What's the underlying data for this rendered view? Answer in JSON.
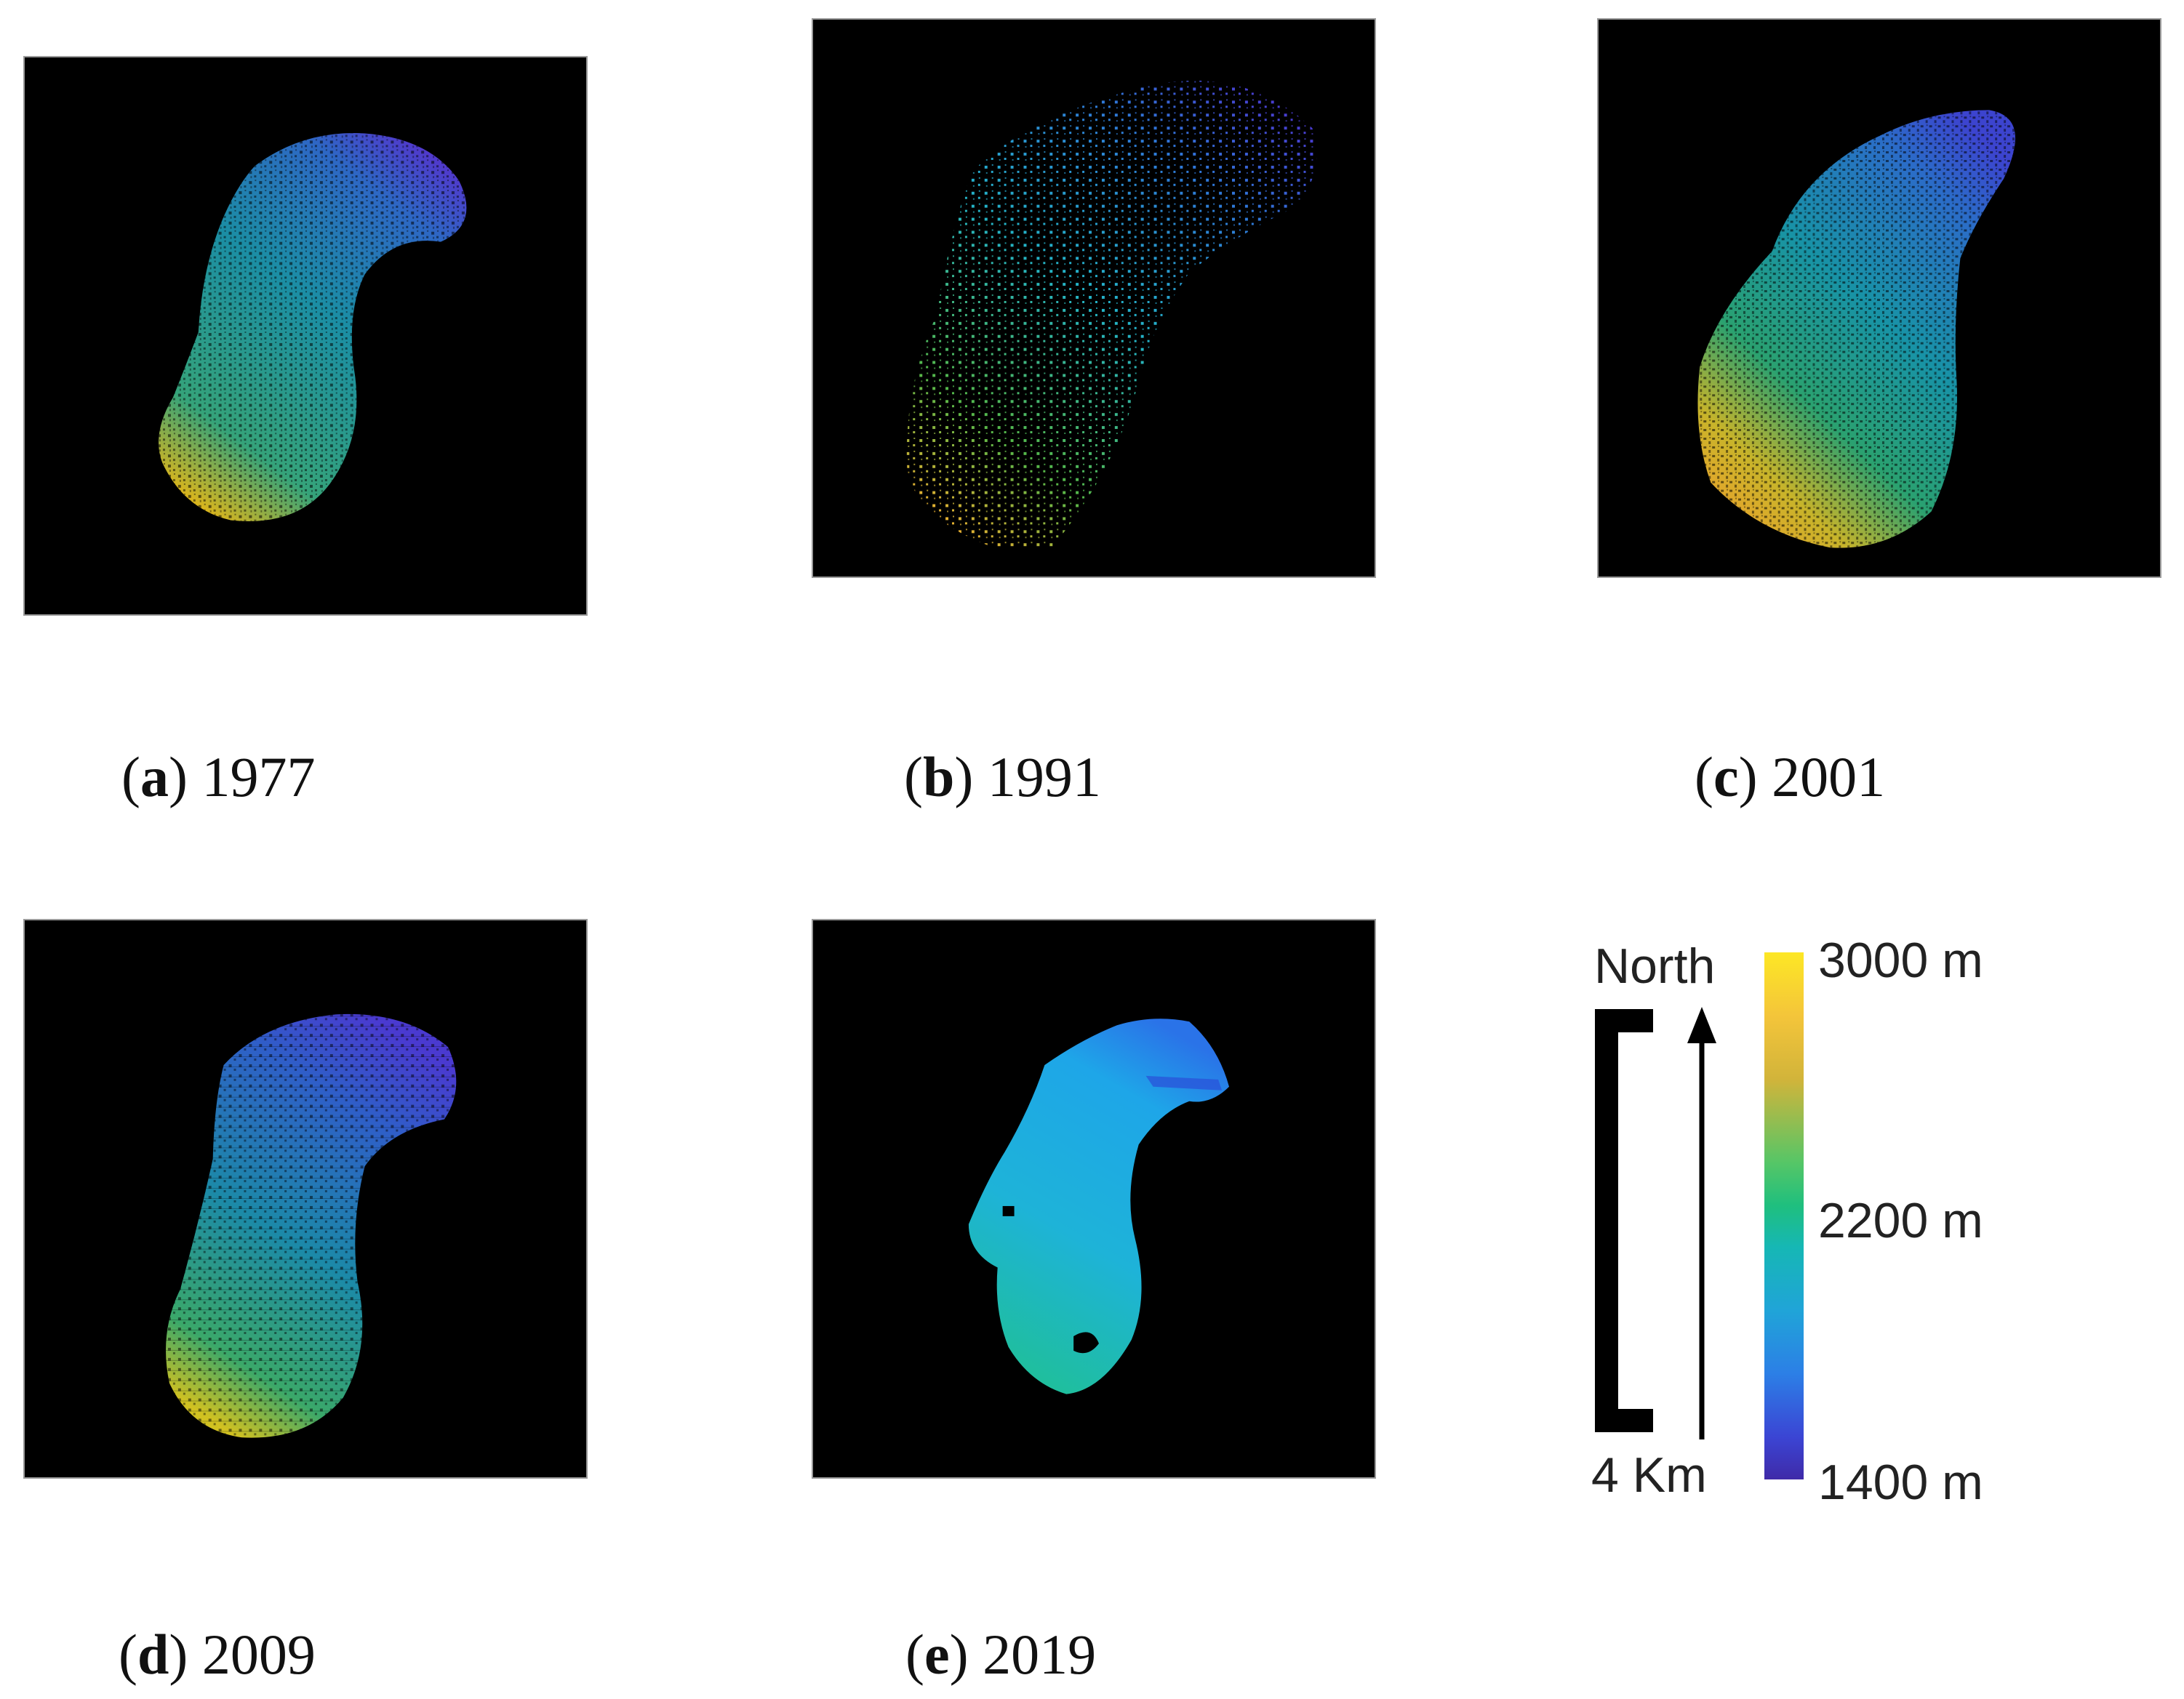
{
  "panels": [
    {
      "id": "a",
      "letter": "a",
      "year": "1977",
      "colors": {
        "north": "#4a3fd0",
        "mid": "#1d9fb0",
        "south": "#d4b11c"
      }
    },
    {
      "id": "b",
      "letter": "b",
      "year": "1991",
      "colors": {
        "north": "#3b3dcc",
        "mid": "#22b6c9",
        "south": "#f0b030"
      }
    },
    {
      "id": "c",
      "letter": "c",
      "year": "2001",
      "colors": {
        "north": "#3050d8",
        "mid": "#1aa39e",
        "south": "#e3a72b"
      }
    },
    {
      "id": "d",
      "letter": "d",
      "year": "2009",
      "colors": {
        "north": "#3c4dd4",
        "mid": "#1f8fb0",
        "south": "#c9c024"
      }
    },
    {
      "id": "e",
      "letter": "e",
      "year": "2019",
      "colors": {
        "north": "#2e78e8",
        "mid": "#1fb0e6",
        "south": "#1fbf9a"
      }
    }
  ],
  "legend": {
    "north_label": "North",
    "scale_label": "4 Km",
    "colorbar": {
      "max_label": "3000 m",
      "mid_label": "2200 m",
      "min_label": "1400 m",
      "max_value": 3000,
      "mid_value": 2200,
      "min_value": 1400,
      "colormap": "viridis-like"
    }
  }
}
